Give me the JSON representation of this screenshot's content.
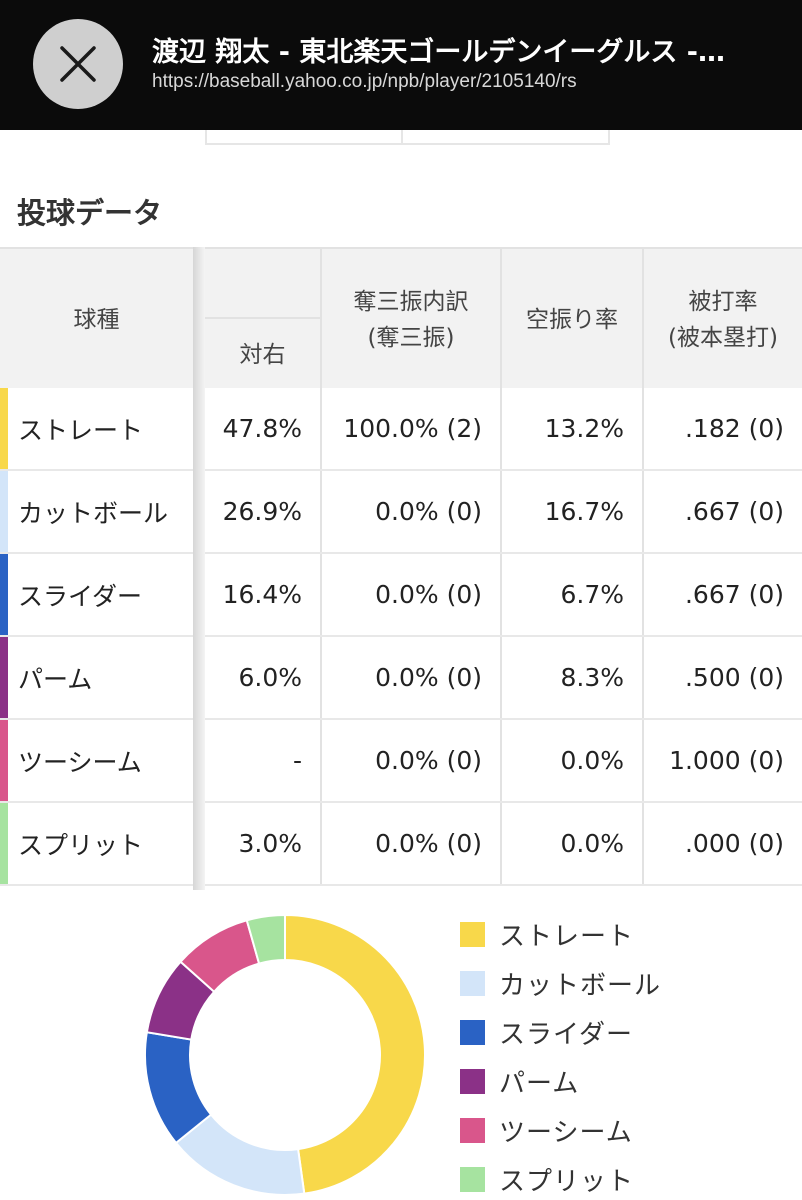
{
  "header": {
    "title": "渡辺 翔太 - 東北楽天ゴールデンイーグルス -…",
    "url": "https://baseball.yahoo.co.jp/npb/player/2105140/rs"
  },
  "section": {
    "title": "投球データ"
  },
  "table": {
    "headers": {
      "pitch_type": "球種",
      "vs_right": "対右",
      "strikeout_line1": "奪三振内訳",
      "strikeout_line2": "(奪三振)",
      "whiff_rate": "空振り率",
      "avg_line1": "被打率",
      "avg_line2": "(被本塁打)"
    },
    "rows": [
      {
        "name": "ストレート",
        "vs_right": "47.8%",
        "strikeout": "100.0% (2)",
        "whiff": "13.2%",
        "avg": ".182 (0)",
        "color": "#F8D84A"
      },
      {
        "name": "カットボール",
        "vs_right": "26.9%",
        "strikeout": "0.0% (0)",
        "whiff": "16.7%",
        "avg": ".667 (0)",
        "color": "#D3E5F9"
      },
      {
        "name": "スライダー",
        "vs_right": "16.4%",
        "strikeout": "0.0% (0)",
        "whiff": "6.7%",
        "avg": ".667 (0)",
        "color": "#2A62C4"
      },
      {
        "name": "パーム",
        "vs_right": "6.0%",
        "strikeout": "0.0% (0)",
        "whiff": "8.3%",
        "avg": ".500 (0)",
        "color": "#8B3187"
      },
      {
        "name": "ツーシーム",
        "vs_right": "-",
        "strikeout": "0.0% (0)",
        "whiff": "0.0%",
        "avg": "1.000 (0)",
        "color": "#D9568B"
      },
      {
        "name": "スプリット",
        "vs_right": "3.0%",
        "strikeout": "0.0% (0)",
        "whiff": "0.0%",
        "avg": ".000 (0)",
        "color": "#A6E3A0"
      }
    ]
  },
  "chart_data": {
    "type": "pie",
    "style": "donut",
    "legend_position": "right",
    "series": [
      {
        "name": "ストレート",
        "value": 47.8,
        "color": "#F8D84A"
      },
      {
        "name": "カットボール",
        "value": 16.4,
        "color": "#D3E5F9"
      },
      {
        "name": "スライダー",
        "value": 13.4,
        "color": "#2A62C4"
      },
      {
        "name": "パーム",
        "value": 9.0,
        "color": "#8B3187"
      },
      {
        "name": "ツーシーム",
        "value": 9.0,
        "color": "#D9568B"
      },
      {
        "name": "スプリット",
        "value": 4.4,
        "color": "#A6E3A0"
      }
    ]
  }
}
